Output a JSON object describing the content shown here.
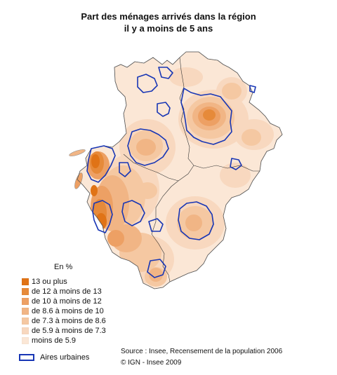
{
  "title": {
    "line1": "Part des ménages arrivés dans la région",
    "line2": "il y a moins de 5 ans"
  },
  "legend": {
    "unit": "En %",
    "classes": [
      {
        "label": "13 ou plus",
        "color": "#e07316"
      },
      {
        "label": "de 12 à moins de 13",
        "color": "#e68a3a"
      },
      {
        "label": "de 10 à moins de 12",
        "color": "#eda064"
      },
      {
        "label": "de 8.6 à moins de 10",
        "color": "#f1b585"
      },
      {
        "label": "de 7.3 à moins de 8.6",
        "color": "#f5c8a2"
      },
      {
        "label": "de 5.9 à moins de 7.3",
        "color": "#f8d8bf"
      },
      {
        "label": "moins de 5.9",
        "color": "#fbe7d6"
      }
    ],
    "urban_label": "Aires urbaines",
    "urban_color": "#1836b5"
  },
  "source": "Source : Insee, Recensement de la population 2006",
  "copyright": "© IGN - Insee 2009"
}
